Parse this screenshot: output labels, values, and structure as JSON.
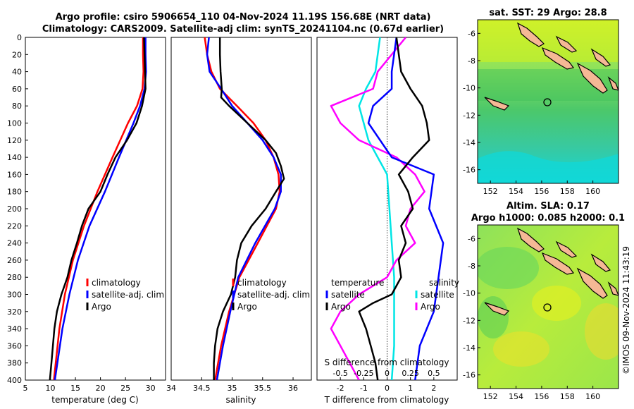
{
  "title_line1": "Argo profile: csiro 5906654_110 04-Nov-2024 11.19S 156.68E (NRT data)",
  "title_line2": "Climatology: CARS2009. Satellite-adj clim: synTS_20241104.nc (0.67d earlier)",
  "watermark": "©IMOS 09-Nov-2024 11:43:19",
  "colors": {
    "climatology": "#ff0000",
    "satellite": "#0000ff",
    "argo": "#000000",
    "temp_diff": "#00e5e5",
    "sal_diff": "#ff00ff",
    "sat_diff": "#0000ff"
  },
  "chart_data": [
    {
      "type": "line",
      "title": "",
      "xlabel": "temperature (deg C)",
      "ylabel": "",
      "xlim": [
        5,
        33
      ],
      "ylim": [
        0,
        400
      ],
      "xticks": [
        "5",
        "10",
        "15",
        "20",
        "25",
        "30"
      ],
      "yticks": [
        "0",
        "20",
        "40",
        "60",
        "80",
        "100",
        "120",
        "140",
        "160",
        "180",
        "200",
        "220",
        "240",
        "260",
        "280",
        "300",
        "320",
        "340",
        "360",
        "380",
        "400"
      ],
      "legend": [
        "climatology",
        "satellite-adj. clim",
        "Argo"
      ],
      "series": [
        {
          "name": "climatology",
          "depth": [
            0,
            20,
            40,
            60,
            80,
            100,
            140,
            180,
            220,
            260,
            300,
            340,
            400
          ],
          "values": [
            28.5,
            28.5,
            28.6,
            28.4,
            27.3,
            25.5,
            22.4,
            19.4,
            16.7,
            14.5,
            12.9,
            11.8,
            10.7
          ]
        },
        {
          "name": "satellite-adj. clim",
          "depth": [
            0,
            20,
            40,
            60,
            80,
            100,
            140,
            180,
            220,
            260,
            300,
            340,
            400
          ],
          "values": [
            29.0,
            29.0,
            29.1,
            28.8,
            27.9,
            26.6,
            23.7,
            20.9,
            17.8,
            15.5,
            13.8,
            12.4,
            10.9
          ]
        },
        {
          "name": "Argo",
          "depth": [
            0,
            20,
            40,
            60,
            80,
            100,
            120,
            140,
            160,
            180,
            200,
            220,
            240,
            260,
            280,
            300,
            320,
            340,
            360,
            380,
            400
          ],
          "values": [
            28.7,
            28.8,
            28.9,
            29.0,
            28.3,
            27.2,
            25.3,
            23.0,
            21.4,
            20.0,
            17.6,
            16.3,
            15.3,
            14.2,
            13.4,
            12.2,
            11.3,
            10.8,
            10.5,
            10.2,
            9.9
          ]
        }
      ]
    },
    {
      "type": "line",
      "title": "",
      "xlabel": "salinity",
      "ylabel": "",
      "xlim": [
        34,
        36.3
      ],
      "ylim": [
        0,
        400
      ],
      "xticks": [
        "34",
        "34.5",
        "35",
        "35.5",
        "36"
      ],
      "legend": [
        "climatology",
        "satellite-adj. clim",
        "Argo"
      ],
      "series": [
        {
          "name": "climatology",
          "depth": [
            0,
            20,
            40,
            60,
            80,
            100,
            120,
            140,
            160,
            180,
            200,
            240,
            280,
            320,
            360,
            400
          ],
          "values": [
            34.55,
            34.59,
            34.66,
            34.8,
            35.08,
            35.35,
            35.55,
            35.68,
            35.76,
            35.78,
            35.72,
            35.42,
            35.12,
            34.95,
            34.82,
            34.72
          ]
        },
        {
          "name": "satellite-adj. clim",
          "depth": [
            0,
            20,
            40,
            60,
            80,
            100,
            120,
            140,
            160,
            180,
            200,
            240,
            280,
            320,
            360,
            400
          ],
          "values": [
            34.62,
            34.59,
            34.63,
            34.82,
            35.0,
            35.25,
            35.5,
            35.68,
            35.8,
            35.8,
            35.7,
            35.38,
            35.1,
            34.97,
            34.85,
            34.75
          ]
        },
        {
          "name": "Argo",
          "depth": [
            0,
            20,
            40,
            60,
            70,
            80,
            100,
            120,
            135,
            150,
            165,
            180,
            200,
            220,
            240,
            260,
            280,
            300,
            320,
            340,
            360,
            380,
            400
          ],
          "values": [
            34.8,
            34.8,
            34.81,
            34.83,
            34.82,
            34.95,
            35.25,
            35.55,
            35.72,
            35.8,
            35.85,
            35.72,
            35.55,
            35.32,
            35.15,
            35.08,
            35.05,
            34.98,
            34.85,
            34.76,
            34.72,
            34.7,
            34.7
          ]
        }
      ]
    },
    {
      "type": "line",
      "title": "",
      "xlabel": "T difference from climatology",
      "x2label": "S difference from climatology",
      "xlim": [
        -3,
        3
      ],
      "ylim": [
        0,
        400
      ],
      "xticks": [
        "-2",
        "-1",
        "0",
        "1",
        "2"
      ],
      "x2ticks": [
        "-0.5",
        "-0.25",
        "0",
        "0.25",
        "0.5"
      ],
      "legend_temperature_header": "temperature",
      "legend_salinity_header": "salinity",
      "legend": [
        "satellite",
        "Argo",
        "satellite",
        "Argo"
      ],
      "series": [
        {
          "name": "temperature satellite",
          "depth": [
            0,
            40,
            60,
            80,
            100,
            120,
            140,
            160,
            200,
            240,
            280,
            320,
            360,
            400
          ],
          "values": [
            -0.3,
            -0.5,
            -0.9,
            -1.2,
            -1.0,
            -0.8,
            -0.4,
            0.0,
            0.1,
            0.2,
            0.3,
            0.3,
            0.3,
            0.2
          ]
        },
        {
          "name": "temperature Argo",
          "depth": [
            0,
            20,
            40,
            60,
            80,
            100,
            120,
            140,
            160,
            180,
            200,
            220,
            240,
            260,
            280,
            300,
            310,
            320,
            340,
            360,
            380,
            400
          ],
          "values": [
            0.4,
            0.5,
            0.6,
            1.0,
            1.5,
            1.7,
            1.8,
            1.1,
            0.5,
            0.9,
            1.1,
            0.6,
            0.8,
            0.5,
            0.6,
            0.2,
            -0.6,
            -1.2,
            -0.9,
            -0.7,
            -0.5,
            -0.4
          ]
        },
        {
          "name": "salinity satellite",
          "depth": [
            0,
            40,
            60,
            80,
            100,
            140,
            160,
            200,
            240,
            280,
            320,
            360,
            400
          ],
          "values": [
            0.1,
            0.05,
            0.05,
            -0.15,
            -0.2,
            0.05,
            0.5,
            0.45,
            0.6,
            0.55,
            0.5,
            0.35,
            0.3
          ]
        },
        {
          "name": "salinity Argo",
          "depth": [
            0,
            40,
            60,
            80,
            100,
            120,
            140,
            160,
            180,
            200,
            220,
            240,
            260,
            280,
            300,
            320,
            340,
            360,
            380,
            400
          ],
          "values": [
            0.2,
            -0.1,
            -0.15,
            -0.6,
            -0.5,
            -0.3,
            0.1,
            0.3,
            0.4,
            0.25,
            0.2,
            0.3,
            0.1,
            0.0,
            -0.3,
            -0.5,
            -0.6,
            -0.5,
            -0.4,
            -0.3
          ]
        }
      ]
    },
    {
      "type": "heatmap",
      "title": "sat. SST: 29 Argo: 28.8",
      "xticks": [
        "152",
        "154",
        "156",
        "158",
        "160"
      ],
      "yticks": [
        "-6",
        "-8",
        "-10",
        "-12",
        "-14",
        "-16"
      ],
      "xlim": [
        151,
        162
      ],
      "ylim": [
        -17,
        -5
      ],
      "marker": {
        "lon": 156.68,
        "lat": -11.19
      }
    },
    {
      "type": "heatmap",
      "title_line1": "Altim. SLA: 0.17",
      "title_line2": "Argo h1000: 0.085 h2000: 0.1",
      "xticks": [
        "152",
        "154",
        "156",
        "158",
        "160"
      ],
      "yticks": [
        "-6",
        "-8",
        "-10",
        "-12",
        "-14",
        "-16"
      ],
      "xlim": [
        151,
        162
      ],
      "ylim": [
        -17,
        -5
      ],
      "marker": {
        "lon": 156.68,
        "lat": -11.19
      }
    }
  ]
}
